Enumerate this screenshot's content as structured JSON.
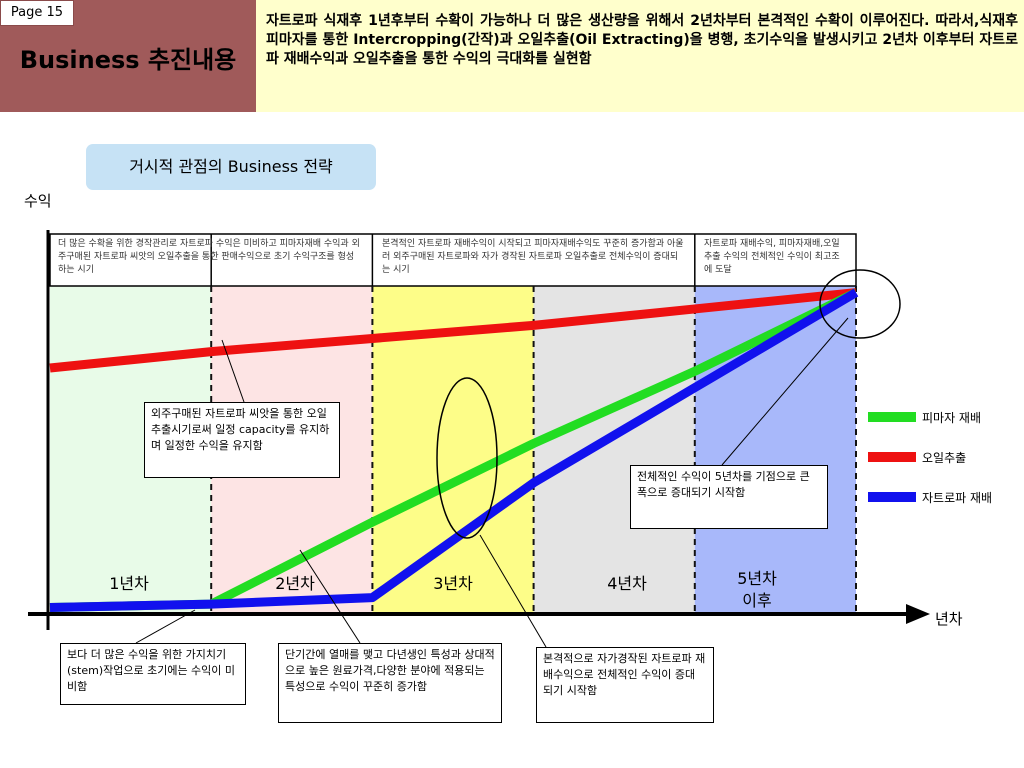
{
  "header": {
    "page_label": "Page 15",
    "title": "Business 추진내용",
    "description": "자트로파 식재후 1년후부터 수확이 가능하나 더 많은 생산량을 위해서 2년차부터 본격적인 수확이 이루어진다. 따라서,식재후 피마자를 통한 Intercropping(간작)과 오일추출(Oil Extracting)을 병행, 초기수익을 발생시키고 2년차 이후부터 자트로파 재배수익과 오일추출을 통한 수익의 극대화를 실현함"
  },
  "badge": "거시적 관점의 Business 전략",
  "chart_data": {
    "type": "line",
    "title": "",
    "xlabel": "년차",
    "ylabel": "수익",
    "x": [
      0,
      1,
      2,
      3,
      4,
      5
    ],
    "series": [
      {
        "name": "피마자 재배",
        "color": "#22dd22",
        "values": [
          2,
          3,
          28,
          52,
          74,
          98
        ]
      },
      {
        "name": "오일추출",
        "color": "#ee1111",
        "values": [
          75,
          80,
          84,
          88,
          93,
          98
        ]
      },
      {
        "name": "자트로파 재배",
        "color": "#1111ee",
        "values": [
          2,
          3,
          5,
          40,
          69,
          98
        ]
      }
    ],
    "periods": [
      {
        "label": "1년차",
        "color": "#e8fbe8"
      },
      {
        "label": "2년차",
        "color": "#fde4e4"
      },
      {
        "label": "3년차",
        "color": "#fdfd88"
      },
      {
        "label": "4년차",
        "color": "#e4e4e4"
      },
      {
        "label": "5년차\n이후",
        "color": "#a8b8fa"
      }
    ],
    "top_notes": [
      "더 많은 수확을 위한 경작관리로 자트로파 수익은 미비하고 피마자재배 수익과 외주구매된 자트로파 씨앗의 오일추출을 통한 판매수익으로 초기 수익구조를 형성하는 시기",
      "본격적인 자트로파 재배수익이 시작되고 피마자재배수익도 꾸준히 증가함과 아울러 외주구매된 자트로파와 자가 경작된 자트로파 오일추출로 전체수익이 증대되는 시기",
      "자트로파 재배수익, 피마자재배,오일추출 수익의 전체적인 수익이 최고조에 도달"
    ],
    "callouts": {
      "oil": "외주구매된 자트로파 씨앗을 통한 오일추출시기로써 일정 capacity를 유지하며 일정한 수익을 유지함",
      "year5": "전체적인 수익이 5년차를 기점으로 큰 폭으로 증대되기 시작함",
      "stem": "보다 더 많은 수익을 위한 가지치기(stem)작업으로 초기에는 수익이 미비함",
      "castor": "단기간에 열매를 맺고 다년생인 특성과 상대적으로 높은 원료가격,다양한 분야에 적용되는 특성으로 수익이 꾸준히 증가함",
      "jatropha": "본격적으로 자가경작된 자트로파 재배수익으로 전체적인 수익이 증대 되기 시작함"
    }
  }
}
